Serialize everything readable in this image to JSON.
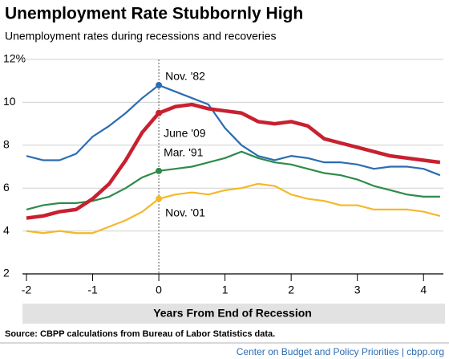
{
  "chart_data": {
    "type": "line",
    "title": "Unemployment Rate Stubbornly High",
    "subtitle": "Unemployment rates during recessions and recoveries",
    "x_label": "Years From End of Recession",
    "source": "Source: CBPP calculations from Bureau of Labor Statistics data.",
    "footer": "Center on Budget and Policy Priorities | cbpp.org",
    "x": [
      -2,
      -1.75,
      -1.5,
      -1.25,
      -1,
      -0.75,
      -0.5,
      -0.25,
      0,
      0.25,
      0.5,
      0.75,
      1,
      1.25,
      1.5,
      1.75,
      2,
      2.25,
      2.5,
      2.75,
      3,
      3.25,
      3.5,
      3.75,
      4,
      4.25
    ],
    "xlim": [
      -2,
      4.3
    ],
    "xticks": [
      -2,
      -1,
      0,
      1,
      2,
      3,
      4
    ],
    "ylim": [
      2,
      12
    ],
    "yticks": [
      2,
      4,
      6,
      8,
      10,
      {
        "value": 12,
        "label": "12%"
      }
    ],
    "grid": true,
    "series": [
      {
        "name": "Nov. '82",
        "color": "#2b6cb3",
        "values": [
          7.5,
          7.3,
          7.3,
          7.6,
          8.4,
          8.9,
          9.5,
          10.2,
          10.8,
          10.5,
          10.2,
          9.9,
          8.8,
          8.0,
          7.5,
          7.3,
          7.5,
          7.4,
          7.2,
          7.2,
          7.1,
          6.9,
          7.0,
          7.0,
          6.9,
          6.6
        ]
      },
      {
        "name": "June '09",
        "color": "#c8202f",
        "values": [
          4.6,
          4.7,
          4.9,
          5.0,
          5.5,
          6.2,
          7.3,
          8.6,
          9.5,
          9.8,
          9.9,
          9.7,
          9.6,
          9.5,
          9.1,
          9.0,
          9.1,
          8.9,
          8.3,
          8.1,
          7.9,
          7.7,
          7.5,
          7.4,
          7.3,
          7.2
        ]
      },
      {
        "name": "Mar. '91",
        "color": "#2e8b4a",
        "values": [
          5.0,
          5.2,
          5.3,
          5.3,
          5.4,
          5.6,
          6.0,
          6.5,
          6.8,
          6.9,
          7.0,
          7.2,
          7.4,
          7.7,
          7.4,
          7.2,
          7.1,
          6.9,
          6.7,
          6.6,
          6.4,
          6.1,
          5.9,
          5.7,
          5.6,
          5.6
        ]
      },
      {
        "name": "Nov. '01",
        "color": "#f5b829",
        "values": [
          4.0,
          3.9,
          4.0,
          3.9,
          3.9,
          4.2,
          4.5,
          4.9,
          5.5,
          5.7,
          5.8,
          5.7,
          5.9,
          6.0,
          6.2,
          6.1,
          5.7,
          5.5,
          5.4,
          5.2,
          5.2,
          5.0,
          5.0,
          5.0,
          4.9,
          4.7
        ]
      }
    ]
  }
}
